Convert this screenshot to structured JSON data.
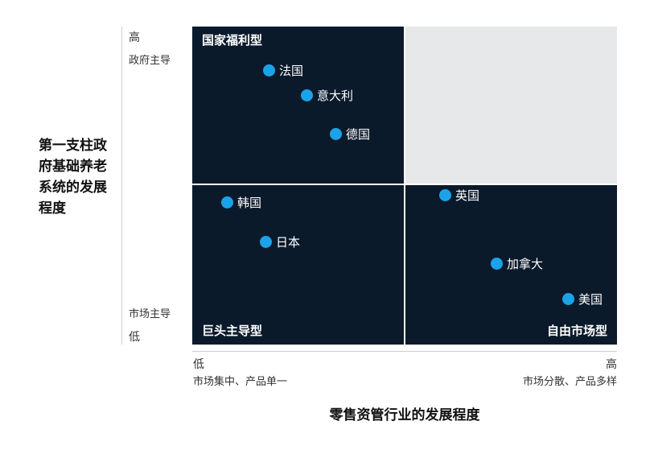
{
  "y_axis": {
    "title": "第一支柱政府基础养老系统的发展程度",
    "high": "高",
    "high_sub": "政府主导",
    "low_sub": "市场主导",
    "low": "低"
  },
  "x_axis": {
    "title": "零售资管行业的发展程度",
    "low": "低",
    "low_sub": "市场集中、产品单一",
    "high": "高",
    "high_sub": "市场分散、产品多样"
  },
  "quadrants": {
    "top_left": "国家福利型",
    "bottom_left": "巨头主导型",
    "bottom_right": "自由市场型"
  },
  "points": {
    "france": "法国",
    "italy": "意大利",
    "germany": "德国",
    "korea": "韩国",
    "japan": "日本",
    "uk": "英国",
    "canada": "加拿大",
    "usa": "美国"
  },
  "colors": {
    "quadrant": "#0b1a2b",
    "empty": "#e7e8ea",
    "dot": "#1aa3e8"
  }
}
